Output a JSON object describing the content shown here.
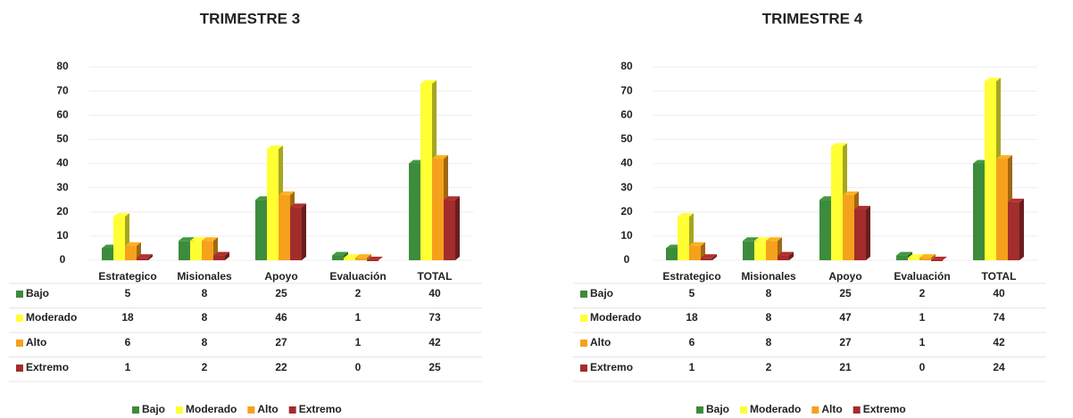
{
  "chart_data": [
    {
      "type": "bar3d",
      "title": "TRIMESTRE 3",
      "categories": [
        "Estrategico",
        "Misionales",
        "Apoyo",
        "Evaluación",
        "TOTAL"
      ],
      "series": [
        {
          "name": "Bajo",
          "color": "#3d8b3d",
          "values": [
            5,
            8,
            25,
            2,
            40
          ]
        },
        {
          "name": "Moderado",
          "color": "#ffff33",
          "values": [
            18,
            8,
            46,
            1,
            73
          ]
        },
        {
          "name": "Alto",
          "color": "#f5a11c",
          "values": [
            6,
            8,
            27,
            1,
            42
          ]
        },
        {
          "name": "Extremo",
          "color": "#a32c2c",
          "values": [
            1,
            2,
            22,
            0,
            25
          ]
        }
      ],
      "ylim": [
        0,
        80
      ],
      "yticks": [
        0,
        10,
        20,
        30,
        40,
        50,
        60,
        70,
        80
      ],
      "grid": true,
      "legend": "bottom"
    },
    {
      "type": "bar3d",
      "title": "TRIMESTRE 4",
      "categories": [
        "Estrategico",
        "Misionales",
        "Apoyo",
        "Evaluación",
        "TOTAL"
      ],
      "series": [
        {
          "name": "Bajo",
          "color": "#3d8b3d",
          "values": [
            5,
            8,
            25,
            2,
            40
          ]
        },
        {
          "name": "Moderado",
          "color": "#ffff33",
          "values": [
            18,
            8,
            47,
            1,
            74
          ]
        },
        {
          "name": "Alto",
          "color": "#f5a11c",
          "values": [
            6,
            8,
            27,
            1,
            42
          ]
        },
        {
          "name": "Extremo",
          "color": "#a32c2c",
          "values": [
            1,
            2,
            21,
            0,
            24
          ]
        }
      ],
      "ylim": [
        0,
        80
      ],
      "yticks": [
        0,
        10,
        20,
        30,
        40,
        50,
        60,
        70,
        80
      ],
      "grid": true,
      "legend": "bottom"
    }
  ]
}
